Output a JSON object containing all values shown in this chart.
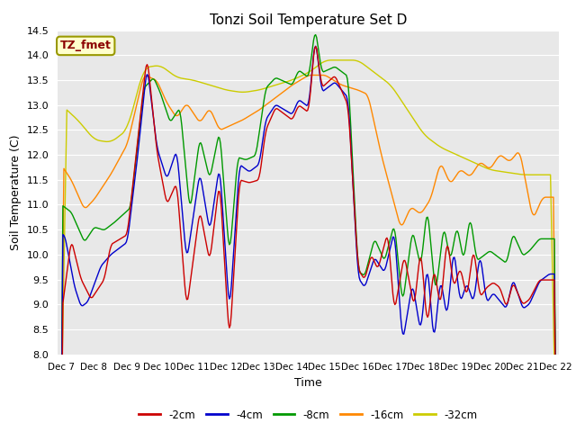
{
  "title": "Tonzi Soil Temperature Set D",
  "xlabel": "Time",
  "ylabel": "Soil Temperature (C)",
  "ylim": [
    8.0,
    14.5
  ],
  "yticks": [
    8.0,
    8.5,
    9.0,
    9.5,
    10.0,
    10.5,
    11.0,
    11.5,
    12.0,
    12.5,
    13.0,
    13.5,
    14.0,
    14.5
  ],
  "label_text": "TZ_fmet",
  "label_bg": "#ffffcc",
  "label_fg": "#8b0000",
  "fig_bg": "#ffffff",
  "axes_bg": "#e8e8e8",
  "grid_color": "#ffffff",
  "xtick_labels": [
    "Dec 7",
    "Dec 8",
    "Dec 9",
    "Dec 10",
    "Dec 11",
    "Dec 12",
    "Dec 13",
    "Dec 14",
    "Dec 15",
    "Dec 16",
    "Dec 17",
    "Dec 18",
    "Dec 19",
    "Dec 20",
    "Dec 21",
    "Dec 22"
  ],
  "series_colors": [
    "#cc0000",
    "#0000cc",
    "#009900",
    "#ff8800",
    "#cccc00"
  ],
  "series_labels": [
    "-2cm",
    "-4cm",
    "-8cm",
    "-16cm",
    "-32cm"
  ],
  "n_points": 500
}
